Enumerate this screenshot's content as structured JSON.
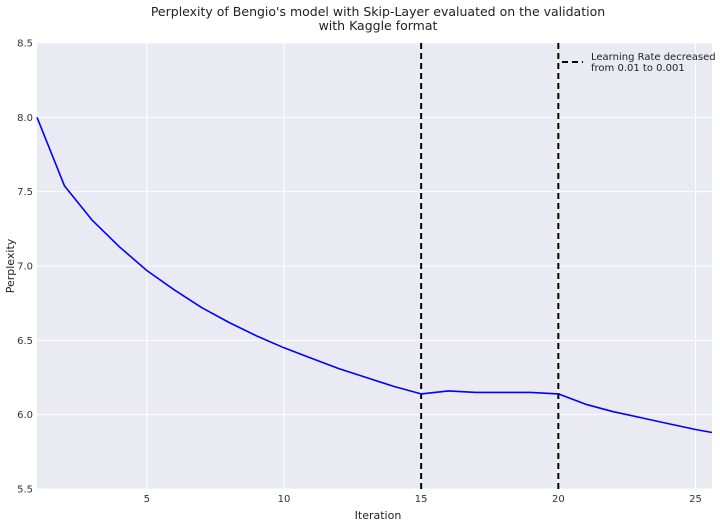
{
  "chart_data": {
    "type": "line",
    "title_lines": [
      "Perplexity of Bengio's model with Skip-Layer evaluated on the validation",
      "with Kaggle format"
    ],
    "xlabel": "Iteration",
    "ylabel": "Perplexity",
    "xlim": [
      1,
      25.6
    ],
    "ylim": [
      5.5,
      8.5
    ],
    "x_ticks": [
      5,
      10,
      15,
      20,
      25
    ],
    "y_ticks": [
      5.5,
      6.0,
      6.5,
      7.0,
      7.5,
      8.0,
      8.5
    ],
    "x_tick_labels": [
      "5",
      "10",
      "15",
      "20",
      "25"
    ],
    "y_tick_labels": [
      "5.5",
      "6.0",
      "6.5",
      "7.0",
      "7.5",
      "8.0",
      "8.5"
    ],
    "grid": true,
    "background": "#eaeaf2",
    "series": [
      {
        "color": "#0000ff",
        "x": [
          1,
          2,
          3,
          4,
          5,
          6,
          7,
          8,
          9,
          10,
          11,
          12,
          13,
          14,
          15,
          16,
          17,
          18,
          19,
          20,
          21,
          22,
          23,
          24,
          25,
          25.6
        ],
        "y": [
          8.0,
          7.54,
          7.31,
          7.13,
          6.97,
          6.84,
          6.72,
          6.62,
          6.53,
          6.45,
          6.38,
          6.31,
          6.25,
          6.19,
          6.14,
          6.16,
          6.15,
          6.15,
          6.15,
          6.14,
          6.07,
          6.02,
          5.98,
          5.94,
          5.9,
          5.88
        ]
      }
    ],
    "vlines": [
      {
        "x": 15,
        "color": "#000000",
        "style": "dashed"
      },
      {
        "x": 20,
        "color": "#000000",
        "style": "dashed"
      }
    ],
    "legend": {
      "placement": "top-right",
      "entries": [
        {
          "lines": [
            "Learning Rate decreased",
            "from 0.01 to 0.001"
          ],
          "color": "#000000",
          "style": "dashed"
        }
      ]
    }
  }
}
